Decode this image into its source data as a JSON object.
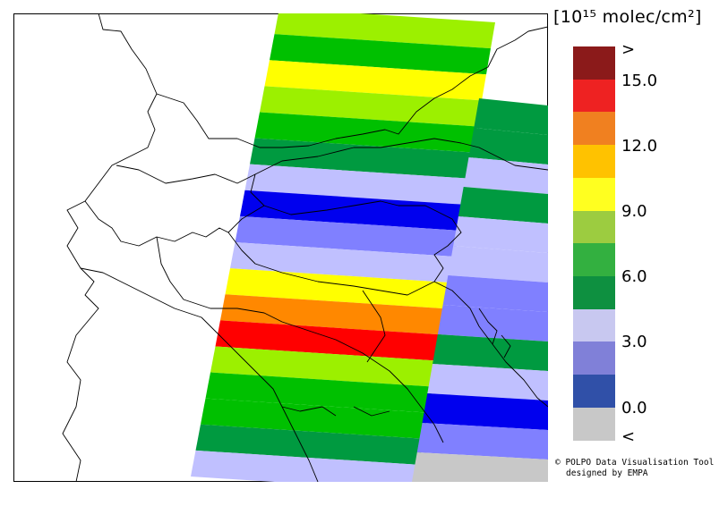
{
  "legend": {
    "unit_label": "[10¹⁵ molec/cm²]",
    "ticks": [
      ">",
      "15.0",
      "12.0",
      "9.0",
      "6.0",
      "3.0",
      "0.0",
      "<"
    ],
    "colors": [
      "#8b1a1a",
      "#ee2222",
      "#f08020",
      "#ffc200",
      "#ffff20",
      "#9ccc40",
      "#33b040",
      "#0e9040",
      "#c8c8f0",
      "#8080d8",
      "#3050a8",
      "#c8c8c8"
    ]
  },
  "credit": {
    "line1": "© POLPO Data Visualisation Tool",
    "line2": "designed by EMPA"
  },
  "bands": [
    {
      "color": "#9cf000"
    },
    {
      "color": "#00c000"
    },
    {
      "color": "#ffff00"
    },
    {
      "color": "#9cf000"
    },
    {
      "color": "#00c000"
    },
    {
      "color": "#009a40"
    },
    {
      "color": "#c0c0ff"
    },
    {
      "color": "#0000ee"
    },
    {
      "color": "#8080ff"
    },
    {
      "color": "#c0c0ff"
    },
    {
      "color": "#ffff00"
    },
    {
      "color": "#ff8800"
    },
    {
      "color": "#ff0000"
    },
    {
      "color": "#9cf000"
    },
    {
      "color": "#00c000"
    },
    {
      "color": "#00c000"
    },
    {
      "color": "#009a40"
    },
    {
      "color": "#c0c0ff"
    }
  ],
  "east_bands": [
    {
      "color": "#009a40"
    },
    {
      "color": "#009a40"
    },
    {
      "color": "#c0c0ff"
    },
    {
      "color": "#009a40"
    },
    {
      "color": "#c0c0ff"
    },
    {
      "color": "#c0c0ff"
    },
    {
      "color": "#8080ff"
    },
    {
      "color": "#8080ff"
    },
    {
      "color": "#009a40"
    },
    {
      "color": "#c0c0ff"
    },
    {
      "color": "#0000ee"
    },
    {
      "color": "#8080ff"
    },
    {
      "color": "#c8c8c8"
    }
  ]
}
